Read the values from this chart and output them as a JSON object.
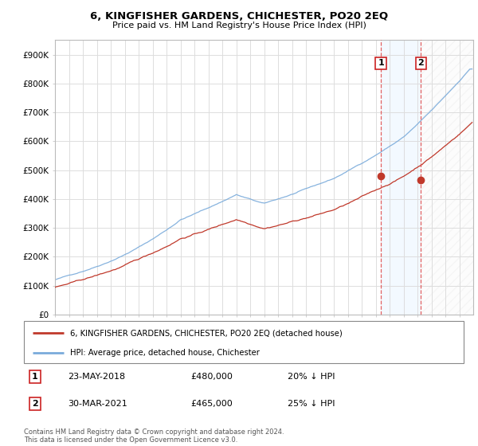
{
  "title": "6, KINGFISHER GARDENS, CHICHESTER, PO20 2EQ",
  "subtitle": "Price paid vs. HM Land Registry's House Price Index (HPI)",
  "footer": "Contains HM Land Registry data © Crown copyright and database right 2024.\nThis data is licensed under the Open Government Licence v3.0.",
  "legend_line1": "6, KINGFISHER GARDENS, CHICHESTER, PO20 2EQ (detached house)",
  "legend_line2": "HPI: Average price, detached house, Chichester",
  "sale1_label": "1",
  "sale1_date": "23-MAY-2018",
  "sale1_price": "£480,000",
  "sale1_hpi": "20% ↓ HPI",
  "sale1_year": 2018.38,
  "sale1_value": 480000,
  "sale2_label": "2",
  "sale2_date": "30-MAR-2021",
  "sale2_price": "£465,000",
  "sale2_hpi": "25% ↓ HPI",
  "sale2_year": 2021.24,
  "sale2_value": 465000,
  "hpi_color": "#7aabdb",
  "price_color": "#c0392b",
  "marker_color": "#c0392b",
  "vline_color": "#e05050",
  "ylim": [
    0,
    950000
  ],
  "yticks": [
    0,
    100000,
    200000,
    300000,
    400000,
    500000,
    600000,
    700000,
    800000,
    900000
  ],
  "ytick_labels": [
    "£0",
    "£100K",
    "£200K",
    "£300K",
    "£400K",
    "£500K",
    "£600K",
    "£700K",
    "£800K",
    "£900K"
  ],
  "background_color": "#ffffff",
  "grid_color": "#dddddd",
  "shade_color": "#ddeeff",
  "hatch_color": "#dddddd"
}
